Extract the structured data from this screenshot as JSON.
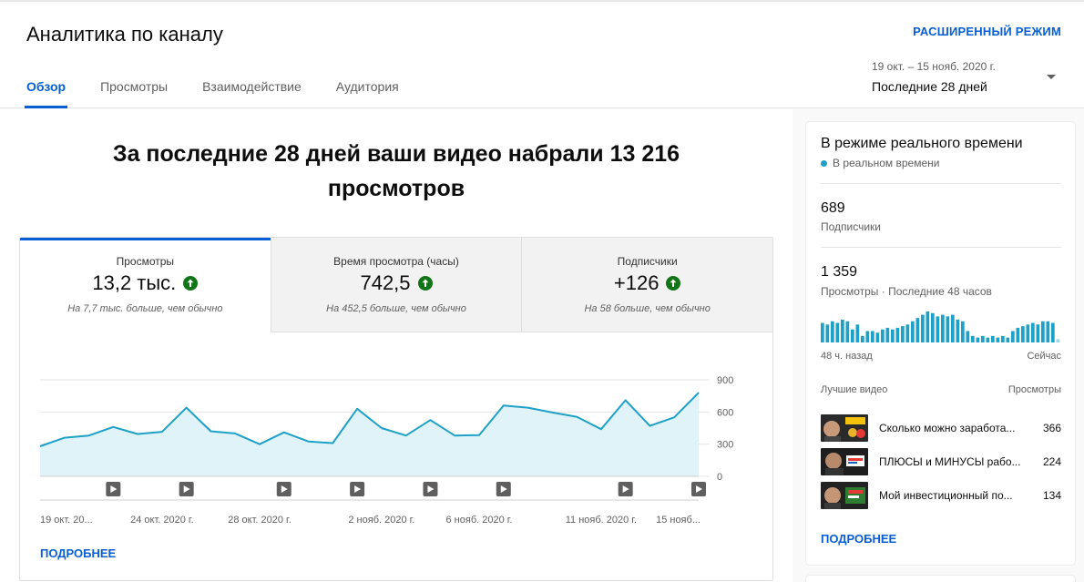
{
  "header": {
    "title": "Аналитика по каналу",
    "advanced_mode": "РАСШИРЕННЫЙ РЕЖИМ",
    "tabs": [
      {
        "label": "Обзор",
        "active": true
      },
      {
        "label": "Просмотры",
        "active": false
      },
      {
        "label": "Взаимодействие",
        "active": false
      },
      {
        "label": "Аудитория",
        "active": false
      }
    ],
    "period": {
      "range": "19 окт. – 15 нояб. 2020 г.",
      "label": "Последние 28 дней"
    }
  },
  "main": {
    "headline": "За последние 28 дней ваши видео набрали 13 216 просмотров",
    "metrics": [
      {
        "label": "Просмотры",
        "value": "13,2 тыс.",
        "note": "На 7,7 тыс. больше, чем обычно",
        "active": true
      },
      {
        "label": "Время просмотра (часы)",
        "value": "742,5",
        "note": "На 452,5 больше, чем обычно",
        "active": false
      },
      {
        "label": "Подписчики",
        "value": "+126",
        "note": "На 58 больше, чем обычно",
        "active": false
      }
    ],
    "more_link": "ПОДРОБНЕЕ"
  },
  "chart_data": {
    "type": "area",
    "x": [
      "19 окт.",
      "20 окт.",
      "21 окт.",
      "22 окт.",
      "23 окт.",
      "24 окт.",
      "25 окт.",
      "26 окт.",
      "27 окт.",
      "28 окт.",
      "29 окт.",
      "30 окт.",
      "31 окт.",
      "1 нояб.",
      "2 нояб.",
      "3 нояб.",
      "4 нояб.",
      "5 нояб.",
      "6 нояб.",
      "7 нояб.",
      "8 нояб.",
      "9 нояб.",
      "10 нояб.",
      "11 нояб.",
      "12 нояб.",
      "13 нояб.",
      "14 нояб.",
      "15 нояб."
    ],
    "values": [
      280,
      360,
      380,
      460,
      395,
      415,
      640,
      420,
      400,
      300,
      410,
      325,
      310,
      630,
      450,
      380,
      525,
      380,
      385,
      660,
      640,
      595,
      555,
      440,
      710,
      470,
      550,
      780
    ],
    "ylim": [
      0,
      900
    ],
    "y_ticks": [
      "0",
      "300",
      "600",
      "900"
    ],
    "x_tick_labels": [
      {
        "index": 0,
        "label": "19 окт. 20..."
      },
      {
        "index": 5,
        "label": "24 окт. 2020 г."
      },
      {
        "index": 9,
        "label": "28 окт. 2020 г."
      },
      {
        "index": 14,
        "label": "2 нояб. 2020 г."
      },
      {
        "index": 18,
        "label": "6 нояб. 2020 г."
      },
      {
        "index": 23,
        "label": "11 нояб. 2020 г."
      },
      {
        "index": 27,
        "label": "15 нояб..."
      }
    ],
    "video_markers": [
      3,
      6,
      10,
      13,
      16,
      19,
      24,
      27
    ],
    "grid": true,
    "color": "#1fa0c6",
    "fill": "#dff3f9"
  },
  "realtime": {
    "title": "В режиме реального времени",
    "live_label": "В реальном времени",
    "subscribers": {
      "value": "689",
      "label": "Подписчики"
    },
    "views": {
      "value": "1 359",
      "label": "Просмотры · Последние 48 часов"
    },
    "hourly_views": [
      12,
      11,
      13,
      12,
      14,
      13,
      8,
      11,
      4,
      7,
      7,
      6,
      8,
      9,
      8,
      9,
      10,
      11,
      13,
      15,
      17,
      19,
      18,
      16,
      17,
      16,
      17,
      14,
      13,
      7,
      4,
      3,
      4,
      3,
      4,
      3,
      4,
      3,
      7,
      9,
      10,
      11,
      12,
      11,
      13,
      13,
      12,
      2
    ],
    "axis_start": "48 ч. назад",
    "axis_end": "Сейчас",
    "top_videos_label": "Лучшие видео",
    "views_label": "Просмотры",
    "top_videos": [
      {
        "title": "Сколько можно заработа...",
        "views": "366"
      },
      {
        "title": "ПЛЮСЫ и МИНУСЫ рабо...",
        "views": "224"
      },
      {
        "title": "Мой инвестиционный по...",
        "views": "134"
      }
    ],
    "more_link": "ПОДРОБНЕЕ"
  },
  "colors": {
    "accent": "#065fd4",
    "chart": "#1fa0c6",
    "up": "#107516"
  }
}
